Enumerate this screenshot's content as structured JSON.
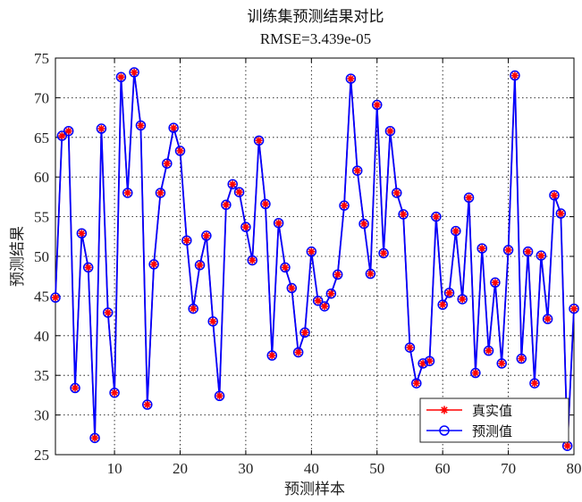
{
  "chart_data": {
    "type": "line",
    "title": "训练集预测结果对比",
    "subtitle": "RMSE=3.439e-05",
    "xlabel": "预测样本",
    "ylabel": "预测结果",
    "xlim": [
      1,
      80
    ],
    "ylim": [
      25,
      75
    ],
    "xticks": [
      10,
      20,
      30,
      40,
      50,
      60,
      70,
      80
    ],
    "yticks": [
      25,
      30,
      35,
      40,
      45,
      50,
      55,
      60,
      65,
      70,
      75
    ],
    "grid": true,
    "legend_position": "bottom-right",
    "x": [
      1,
      2,
      3,
      4,
      5,
      6,
      7,
      8,
      9,
      10,
      11,
      12,
      13,
      14,
      15,
      16,
      17,
      18,
      19,
      20,
      21,
      22,
      23,
      24,
      25,
      26,
      27,
      28,
      29,
      30,
      31,
      32,
      33,
      34,
      35,
      36,
      37,
      38,
      39,
      40,
      41,
      42,
      43,
      44,
      45,
      46,
      47,
      48,
      49,
      50,
      51,
      52,
      53,
      54,
      55,
      56,
      57,
      58,
      59,
      60,
      61,
      62,
      63,
      64,
      65,
      66,
      67,
      68,
      69,
      70,
      71,
      72,
      73,
      74,
      75,
      76,
      77,
      78,
      79,
      80
    ],
    "series": [
      {
        "name": "真实值",
        "color": "#ff0000",
        "marker": "star",
        "values": [
          44.8,
          65.2,
          65.8,
          33.4,
          52.9,
          48.6,
          27.1,
          66.1,
          42.9,
          32.8,
          72.6,
          58.0,
          73.2,
          66.5,
          31.3,
          49.0,
          58.0,
          61.7,
          66.2,
          63.3,
          52.0,
          43.4,
          48.9,
          52.6,
          41.8,
          32.4,
          56.5,
          59.1,
          58.1,
          53.7,
          49.5,
          64.6,
          56.6,
          37.5,
          54.2,
          48.6,
          46.0,
          37.9,
          40.4,
          50.6,
          44.4,
          43.7,
          45.3,
          47.7,
          56.4,
          72.4,
          60.8,
          54.1,
          47.8,
          69.1,
          50.4,
          65.8,
          58.0,
          55.3,
          38.5,
          34.0,
          36.5,
          36.8,
          55.0,
          43.9,
          45.4,
          53.2,
          44.6,
          57.4,
          35.3,
          51.0,
          38.1,
          46.7,
          36.5,
          50.8,
          72.8,
          37.1,
          50.6,
          34.0,
          50.1,
          42.1,
          57.7,
          55.4,
          26.1,
          43.4
        ]
      },
      {
        "name": "预测值",
        "color": "#0000ff",
        "marker": "circle",
        "values": [
          44.8,
          65.2,
          65.8,
          33.4,
          52.9,
          48.6,
          27.1,
          66.1,
          42.9,
          32.8,
          72.6,
          58.0,
          73.2,
          66.5,
          31.3,
          49.0,
          58.0,
          61.7,
          66.2,
          63.3,
          52.0,
          43.4,
          48.9,
          52.6,
          41.8,
          32.4,
          56.5,
          59.1,
          58.1,
          53.7,
          49.5,
          64.6,
          56.6,
          37.5,
          54.2,
          48.6,
          46.0,
          37.9,
          40.4,
          50.6,
          44.4,
          43.7,
          45.3,
          47.7,
          56.4,
          72.4,
          60.8,
          54.1,
          47.8,
          69.1,
          50.4,
          65.8,
          58.0,
          55.3,
          38.5,
          34.0,
          36.5,
          36.8,
          55.0,
          43.9,
          45.4,
          53.2,
          44.6,
          57.4,
          35.3,
          51.0,
          38.1,
          46.7,
          36.5,
          50.8,
          72.8,
          37.1,
          50.6,
          34.0,
          50.1,
          42.1,
          57.7,
          55.4,
          26.1,
          43.4
        ]
      }
    ]
  }
}
